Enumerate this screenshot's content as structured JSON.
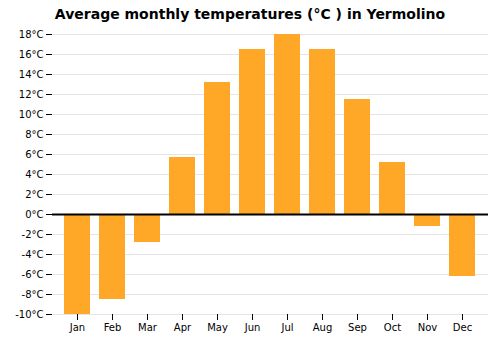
{
  "chart_data": {
    "type": "bar",
    "title": "Average monthly temperatures (°C ) in Yermolino",
    "categories": [
      "Jan",
      "Feb",
      "Mar",
      "Apr",
      "May",
      "Jun",
      "Jul",
      "Aug",
      "Sep",
      "Oct",
      "Nov",
      "Dec"
    ],
    "values": [
      -10,
      -8.5,
      -2.8,
      5.7,
      13.2,
      16.5,
      18.0,
      16.5,
      11.5,
      5.2,
      -1.2,
      -6.2
    ],
    "color": "#FFA726",
    "ylim": [
      -10,
      18
    ],
    "yticks": [
      {
        "value": -10,
        "label": "-10°C"
      },
      {
        "value": -8,
        "label": "-8°C"
      },
      {
        "value": -6,
        "label": "-6°C"
      },
      {
        "value": -4,
        "label": "-4°C"
      },
      {
        "value": -2,
        "label": "-2°C"
      },
      {
        "value": 0,
        "label": "0°C"
      },
      {
        "value": 2,
        "label": "2°C"
      },
      {
        "value": 4,
        "label": "4°C"
      },
      {
        "value": 6,
        "label": "6°C"
      },
      {
        "value": 8,
        "label": "8°C"
      },
      {
        "value": 10,
        "label": "10°C"
      },
      {
        "value": 12,
        "label": "12°C"
      },
      {
        "value": 14,
        "label": "14°C"
      },
      {
        "value": 16,
        "label": "16°C"
      },
      {
        "value": 18,
        "label": "18°C"
      }
    ],
    "grid": true
  }
}
